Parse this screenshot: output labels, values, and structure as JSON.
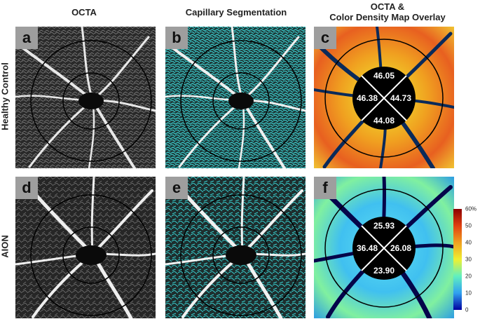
{
  "columns": {
    "octa": "OCTA",
    "seg": "Capillary Segmentation",
    "map_line1": "OCTA &",
    "map_line2": "Color Density Map Overlay"
  },
  "rows": {
    "healthy": "Healthy Control",
    "aion": "AION"
  },
  "panels": {
    "a": "a",
    "b": "b",
    "c": "c",
    "d": "d",
    "e": "e",
    "f": "f"
  },
  "density_healthy": {
    "top": "46.05",
    "left": "46.38",
    "right": "44.73",
    "bottom": "44.08"
  },
  "density_aion": {
    "top": "25.93",
    "left": "36.48",
    "right": "26.08",
    "bottom": "23.90"
  },
  "colorbar": {
    "ticks": [
      "60%",
      "50",
      "40",
      "30",
      "20",
      "10",
      "0"
    ],
    "colors": [
      "#8b0000",
      "#e04010",
      "#f0a020",
      "#f0f030",
      "#60f0c0",
      "#30a0f0",
      "#0000a0"
    ]
  }
}
